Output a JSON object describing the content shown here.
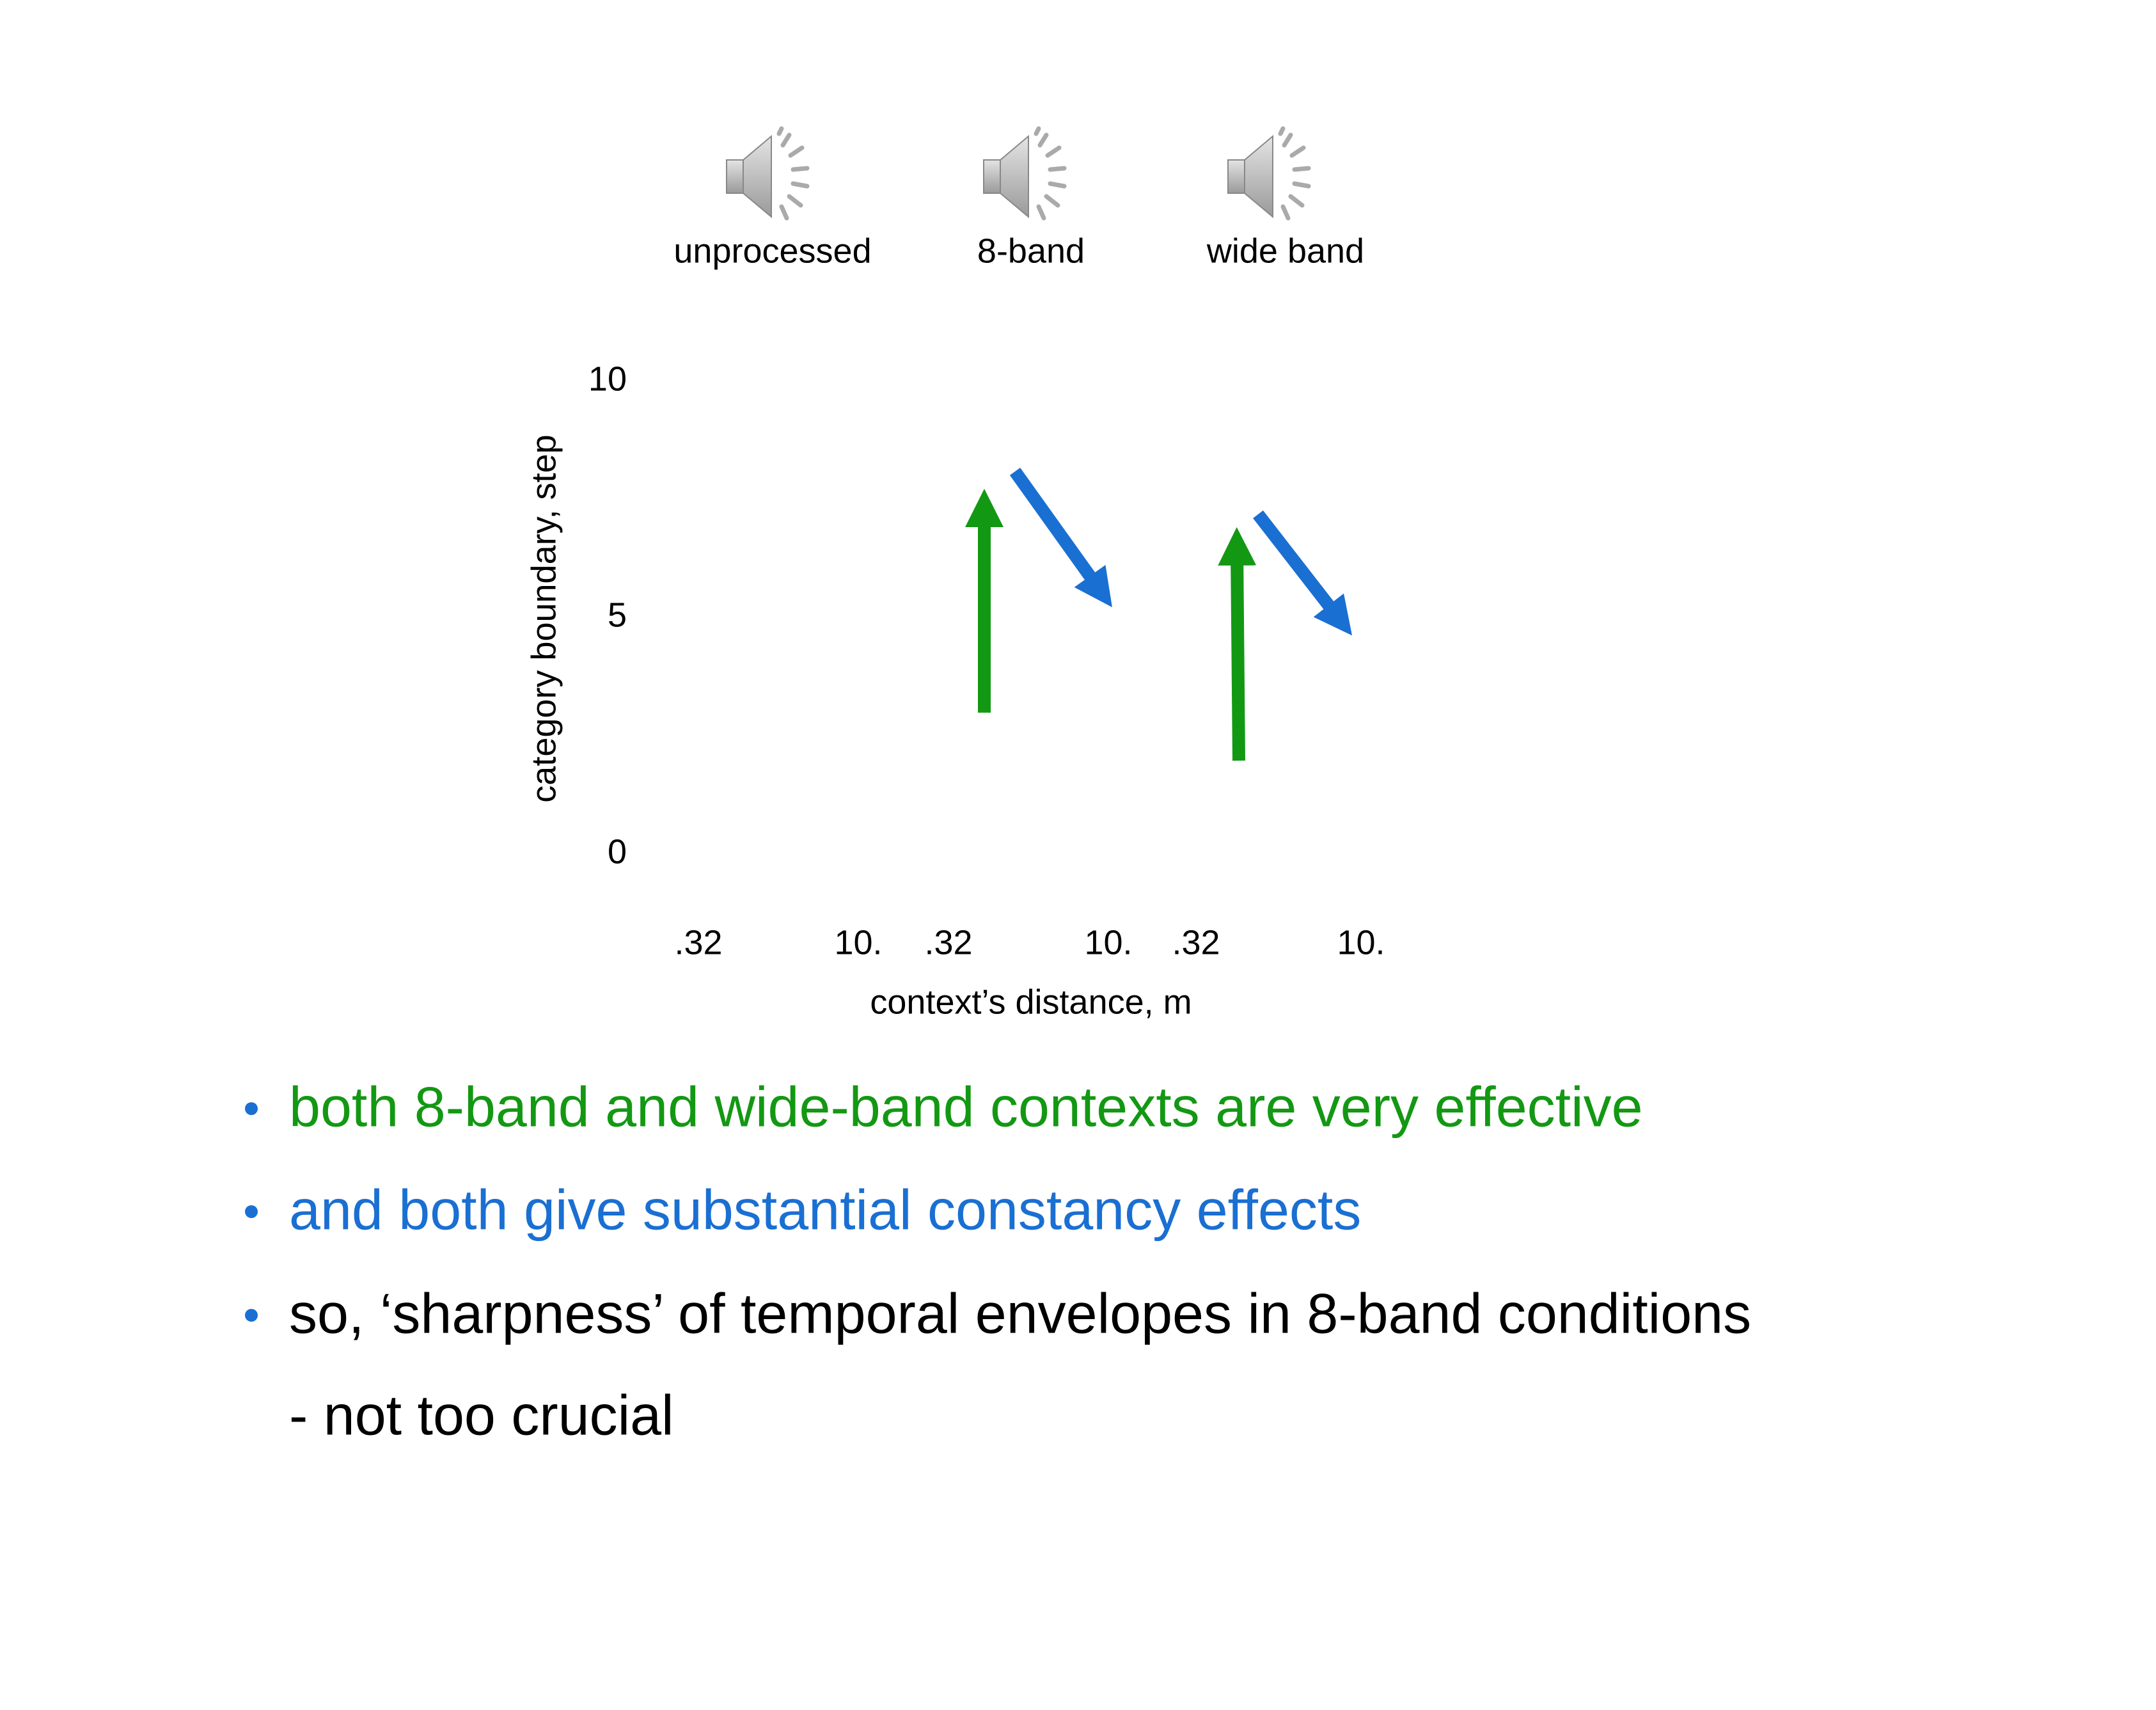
{
  "audio_labels": [
    "unprocessed",
    "8-band",
    "wide band"
  ],
  "y_axis": {
    "label": "category boundary, step",
    "ticks": [
      "10",
      "5",
      "0"
    ]
  },
  "x_axis": {
    "label": "context’s distance, m",
    "ticks": [
      ".32",
      "10.",
      ".32",
      "10.",
      ".32",
      "10."
    ]
  },
  "bullets": [
    {
      "text": "both 8-band and wide-band contexts are very effective",
      "color": "#139813"
    },
    {
      "text": "and both give substantial constancy effects",
      "color": "#1a6fd2"
    },
    {
      "text": "so, ‘sharpness’ of temporal envelopes in 8-band conditions",
      "color": "#000000"
    }
  ],
  "sub_bullet": "- not too crucial"
}
